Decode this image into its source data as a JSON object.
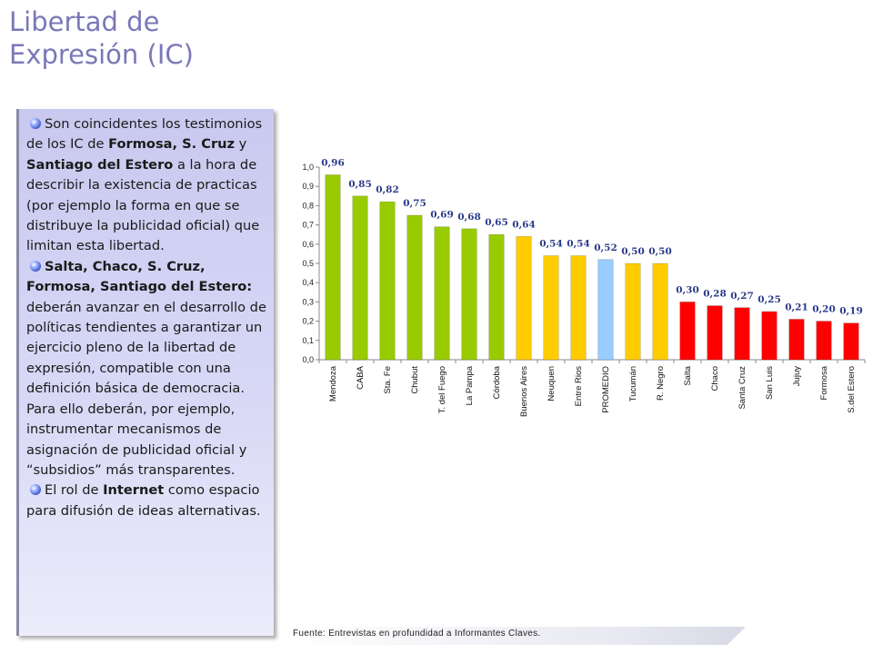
{
  "title": {
    "line1": "Libertad de",
    "line2": "Expresión (IC)"
  },
  "bullets": [
    {
      "segments": [
        {
          "t": "Son coincidentes los testimonios de los IC  de ",
          "b": false
        },
        {
          "t": "Formosa, S. Cruz",
          "b": true
        },
        {
          "t": " y ",
          "b": false
        },
        {
          "t": "Santiago del Estero",
          "b": true
        },
        {
          "t": " a la hora de describir la existencia de practicas (por ejemplo la forma en que se distribuye la publicidad oficial) que limitan esta libertad.",
          "b": false
        }
      ]
    },
    {
      "segments": [
        {
          "t": "Salta, Chaco, S. Cruz, Formosa, Santiago del Estero:",
          "b": true
        },
        {
          "t": " deberán avanzar en el desarrollo de políticas tendientes a garantizar un ejercicio pleno de la libertad de expresión, compatible con una definición básica de democracia. Para ello deberán, por ejemplo, instrumentar mecanismos de asignación de publicidad oficial y “subsidios” más transparentes.",
          "b": false
        }
      ]
    },
    {
      "segments": [
        {
          "t": "El rol de ",
          "b": false
        },
        {
          "t": "Internet",
          "b": true
        },
        {
          "t": " como espacio para difusión de ideas alternativas.",
          "b": false
        }
      ]
    }
  ],
  "source": "Fuente: Entrevistas  en profundidad a Informantes Claves.",
  "chart_data": {
    "type": "bar",
    "title": "",
    "xlabel": "",
    "ylabel": "",
    "ylim": [
      0,
      1
    ],
    "yticks": [
      "0,0",
      "0,1",
      "0,2",
      "0,3",
      "0,4",
      "0,5",
      "0,6",
      "0,7",
      "0,8",
      "0,9",
      "1,0"
    ],
    "grid": false,
    "legend": "none",
    "colors": {
      "green": "#99cc00",
      "yellow": "#ffcc00",
      "blue": "#99ccff",
      "red": "#ff0000",
      "label": "#2a3a8a"
    },
    "categories": [
      "Mendoza",
      "CABA",
      "Sta. Fe",
      "Chubut",
      "T. del Fuego",
      "La Pampa",
      "Córdoba",
      "Buenos Aires",
      "Neuquen",
      "Entre Rios",
      "PROMEDIO",
      "Tucumán",
      "R. Negro",
      "Salta",
      "Chaco",
      "Santa Cruz",
      "San Luis",
      "Jujuy",
      "Formosa",
      "S.del Estero"
    ],
    "values": [
      0.96,
      0.85,
      0.82,
      0.75,
      0.69,
      0.68,
      0.65,
      0.64,
      0.54,
      0.54,
      0.52,
      0.5,
      0.5,
      0.3,
      0.28,
      0.27,
      0.25,
      0.21,
      0.2,
      0.19
    ],
    "value_labels": [
      "0,96",
      "0,85",
      "0,82",
      "0,75",
      "0,69",
      "0,68",
      "0,65",
      "0,64",
      "0,54",
      "0,54",
      "0,52",
      "0,50",
      "0,50",
      "0,30",
      "0,28",
      "0,27",
      "0,25",
      "0,21",
      "0,20",
      "0,19"
    ],
    "bar_colors": [
      "green",
      "green",
      "green",
      "green",
      "green",
      "green",
      "green",
      "yellow",
      "yellow",
      "yellow",
      "blue",
      "yellow",
      "yellow",
      "red",
      "red",
      "red",
      "red",
      "red",
      "red",
      "red"
    ]
  }
}
